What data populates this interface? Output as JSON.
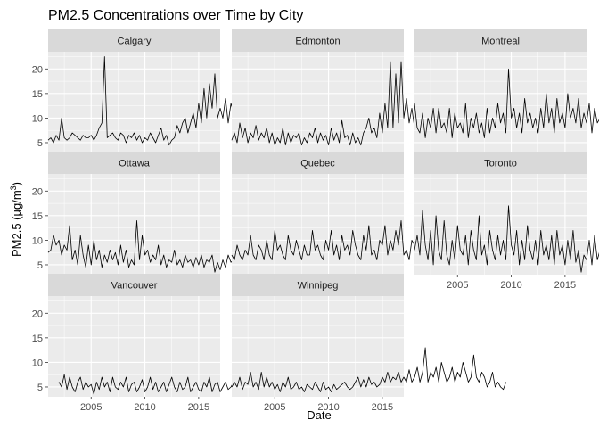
{
  "chart_data": {
    "type": "line",
    "title": "PM2.5 Concentrations over Time by City",
    "xlabel": "Date",
    "ylabel_main": "PM2.5 (µg/m",
    "ylabel_sup": "3",
    "ylabel_close": ")",
    "xlim": [
      2001,
      2017
    ],
    "ylim": [
      3,
      23.5
    ],
    "x_ticks": [
      2005,
      2010,
      2015
    ],
    "y_ticks": [
      5,
      10,
      15,
      20
    ],
    "series": [
      {
        "name": "Calgary",
        "x_start": 2001.0,
        "x_step": 0.25,
        "values": [
          5.5,
          6,
          5,
          6.5,
          5.5,
          10,
          6,
          5.5,
          6,
          7,
          6.5,
          6,
          5.5,
          6.5,
          6,
          6,
          6.5,
          5.5,
          6.5,
          8,
          9,
          22.5,
          6,
          6.5,
          7,
          6,
          5.5,
          7,
          6.5,
          5,
          6.5,
          6,
          7,
          5.5,
          6.5,
          5,
          6,
          5.5,
          7,
          6,
          5,
          6.5,
          8,
          5.5,
          6.5,
          4.5,
          5.5,
          6,
          8.5,
          7,
          9,
          10,
          7,
          9,
          11,
          8,
          13,
          9,
          16,
          10,
          17,
          12,
          19,
          10,
          12,
          10,
          14,
          9,
          13,
          11,
          10,
          16,
          12,
          9,
          10,
          8,
          11,
          7.5,
          10,
          8,
          15,
          7,
          10,
          8,
          12,
          7,
          11,
          7.5,
          10,
          7,
          12,
          9,
          10,
          8,
          9,
          7,
          11,
          6,
          18,
          5,
          6,
          4.5,
          8,
          5,
          7,
          4,
          6.5,
          4,
          6,
          7.5
        ]
      },
      {
        "name": "Edmonton",
        "x_start": 2001.0,
        "x_step": 0.25,
        "values": [
          5.5,
          7,
          5,
          9,
          6,
          8,
          5,
          7,
          6,
          8.5,
          5.5,
          7,
          6,
          8,
          5,
          7,
          4.5,
          6,
          5,
          8,
          4.5,
          7,
          5,
          6.5,
          6,
          7,
          4.5,
          6,
          5,
          7,
          6,
          8,
          5,
          7,
          5.5,
          6.5,
          4.5,
          8,
          5.5,
          7,
          5,
          9.5,
          6,
          6.5,
          4.5,
          7,
          5,
          6,
          4.5,
          7,
          8,
          10,
          7,
          8,
          6,
          11,
          7,
          13,
          8,
          21.5,
          8,
          19,
          9,
          21.5,
          10,
          14,
          9,
          12,
          8,
          10,
          7,
          11,
          6,
          9,
          7,
          10,
          6,
          12,
          7,
          13,
          8,
          9,
          6,
          11,
          8,
          12,
          7,
          16,
          9,
          8,
          10,
          7,
          13,
          8,
          9,
          6,
          10,
          7,
          11,
          8,
          9,
          10,
          6,
          11,
          12,
          7,
          9,
          8,
          5,
          10,
          7,
          8,
          6,
          9
        ]
      },
      {
        "name": "Montreal",
        "x_start": 2001.0,
        "x_step": 0.25,
        "values": [
          13,
          8,
          7,
          11,
          6,
          10,
          8,
          12,
          7,
          12,
          8,
          9,
          7,
          12,
          6,
          11,
          8,
          9,
          7,
          13,
          6,
          10,
          8,
          11,
          7,
          9,
          6,
          12,
          7,
          10,
          8,
          13,
          9,
          11,
          7,
          20,
          10,
          12,
          8,
          11,
          7,
          14,
          9,
          11,
          8,
          10,
          7,
          12,
          8,
          15,
          9,
          12,
          7,
          14,
          9,
          11,
          8,
          15,
          10,
          12,
          9,
          14,
          8,
          11,
          9,
          13,
          7,
          12,
          9,
          10,
          8,
          12,
          9,
          14,
          8,
          10,
          9,
          12,
          8,
          11,
          7,
          10,
          9,
          12,
          8,
          10,
          9,
          11,
          7,
          12,
          8,
          10,
          7,
          11,
          9,
          10,
          8,
          9,
          7,
          12,
          8,
          10,
          6,
          9,
          7,
          8,
          6,
          9,
          5,
          11,
          6
        ]
      },
      {
        "name": "Ottawa",
        "x_start": 2001.0,
        "x_step": 0.25,
        "values": [
          7.5,
          8,
          11,
          9,
          10,
          7,
          9,
          8,
          13,
          6,
          8,
          5,
          11,
          7,
          4.5,
          9,
          5,
          10,
          6,
          8,
          4.5,
          7,
          5.5,
          8,
          6,
          7.5,
          5,
          9,
          5.5,
          8,
          4.5,
          6,
          5,
          14,
          6,
          11,
          7,
          8,
          5.5,
          7,
          6,
          9,
          5,
          7,
          4.5,
          6,
          5.5,
          8,
          5,
          6,
          4.5,
          7,
          5.5,
          6,
          4.5,
          6.5,
          5,
          7,
          4.5,
          6,
          5.5,
          7,
          3.5,
          5.5,
          4,
          6,
          4.5,
          7,
          5.5,
          6,
          5,
          7.5,
          6,
          8,
          6.5,
          7,
          9,
          6.5,
          8,
          7,
          9.5,
          6,
          10,
          7,
          8,
          6.5,
          9,
          5.5,
          7,
          6,
          5,
          6,
          7,
          5.5,
          5,
          6.5,
          4.5,
          7,
          5,
          6,
          4.5,
          8
        ]
      },
      {
        "name": "Quebec",
        "x_start": 2001.0,
        "x_step": 0.25,
        "values": [
          7,
          6,
          9,
          7,
          6,
          8,
          7,
          11,
          7,
          6,
          9,
          8,
          6,
          10,
          7,
          6,
          12,
          8,
          9,
          7,
          6,
          11,
          8,
          7,
          10,
          8,
          6,
          9,
          7,
          7,
          12,
          8,
          9,
          7,
          6,
          10,
          8,
          12,
          7,
          9,
          6,
          11,
          8,
          9,
          7,
          12,
          9,
          7,
          6,
          11,
          8,
          13,
          7,
          8,
          6,
          10,
          9,
          13,
          7,
          10,
          8,
          12,
          9,
          14,
          7,
          8,
          6,
          10,
          9,
          13,
          7,
          14,
          8,
          9,
          7,
          11,
          8,
          15,
          7,
          9,
          6,
          14,
          8,
          12,
          7,
          10,
          8,
          15,
          9,
          11,
          7,
          10,
          6,
          12,
          8,
          14,
          9,
          10,
          7,
          12,
          8,
          10,
          7,
          9,
          7,
          8,
          7,
          8,
          7,
          11
        ]
      },
      {
        "name": "Toronto",
        "x_start": 2001.0,
        "x_step": 0.25,
        "values": [
          8,
          11,
          7,
          16,
          9,
          6,
          12,
          5,
          15,
          8,
          6,
          14,
          7,
          5,
          10,
          6,
          13,
          8,
          7,
          11,
          5,
          12,
          8,
          6,
          15,
          7,
          9,
          5,
          12,
          8,
          6,
          11,
          7,
          10,
          6,
          17,
          9,
          7,
          12,
          5,
          10,
          6,
          13,
          8,
          6,
          10,
          5,
          12,
          7,
          9,
          6,
          11,
          5,
          12,
          7,
          9,
          5,
          10,
          6,
          12,
          5.5,
          8,
          3.5,
          7,
          6,
          10,
          5,
          11,
          6,
          8,
          5,
          11,
          6,
          9,
          5,
          8,
          6,
          10,
          5,
          12,
          7,
          8,
          6,
          10,
          7,
          14,
          9,
          11,
          8,
          10,
          7,
          11,
          8,
          9,
          7,
          10,
          8,
          7,
          10,
          6,
          11,
          8,
          9,
          7,
          8,
          6,
          9,
          5
        ]
      },
      {
        "name": "Vancouver",
        "x_start": 2002.0,
        "x_step": 0.25,
        "values": [
          6,
          5,
          7.5,
          4.5,
          7,
          5,
          4,
          6,
          7,
          4.5,
          6,
          5,
          5.5,
          3.5,
          6,
          4.5,
          7,
          5,
          6,
          4,
          7,
          5,
          4.5,
          6,
          5,
          7,
          4,
          5.5,
          6,
          4,
          5,
          6.5,
          4,
          5,
          7,
          4.5,
          6,
          4,
          5,
          6,
          4,
          5.5,
          7,
          5,
          4,
          6,
          4.5,
          5,
          7,
          4,
          5,
          6,
          4.5,
          4,
          6,
          5,
          7,
          4,
          5.5,
          6,
          4,
          5,
          6,
          4.5,
          5,
          6,
          4,
          5,
          6.5,
          5,
          4,
          7,
          5,
          6,
          4.5,
          7,
          5,
          6,
          7,
          8,
          6,
          7,
          5,
          12.5,
          6,
          7,
          5,
          6,
          4.5,
          6,
          3.5,
          5,
          4,
          6.5
        ]
      },
      {
        "name": "Winnipeg",
        "x_start": 2001.0,
        "x_step": 0.25,
        "values": [
          5,
          6,
          5,
          7,
          4.5,
          6,
          5.5,
          8,
          5,
          6,
          4.5,
          8,
          5,
          7,
          5,
          6,
          4.5,
          5.5,
          4,
          6,
          5,
          7,
          4.5,
          5,
          6,
          4.5,
          5,
          4,
          5.5,
          5,
          4.5,
          6,
          5,
          4,
          6,
          4.5,
          5,
          4,
          5.5,
          4.5,
          5,
          5.5,
          6,
          5,
          4.5,
          5,
          6,
          7,
          5,
          6.5,
          5,
          7,
          5.5,
          6,
          5,
          5.5,
          7,
          6,
          8,
          6,
          7,
          6.5,
          8,
          6,
          7,
          6,
          8.5,
          6,
          7,
          9,
          6,
          8,
          13,
          6,
          8,
          7,
          9,
          6,
          10,
          8,
          6,
          7,
          9,
          6,
          8,
          7,
          10,
          8,
          6,
          7,
          11.5,
          7,
          6,
          8,
          7,
          5,
          6,
          8,
          5,
          6,
          5,
          4.5,
          6
        ]
      }
    ]
  }
}
